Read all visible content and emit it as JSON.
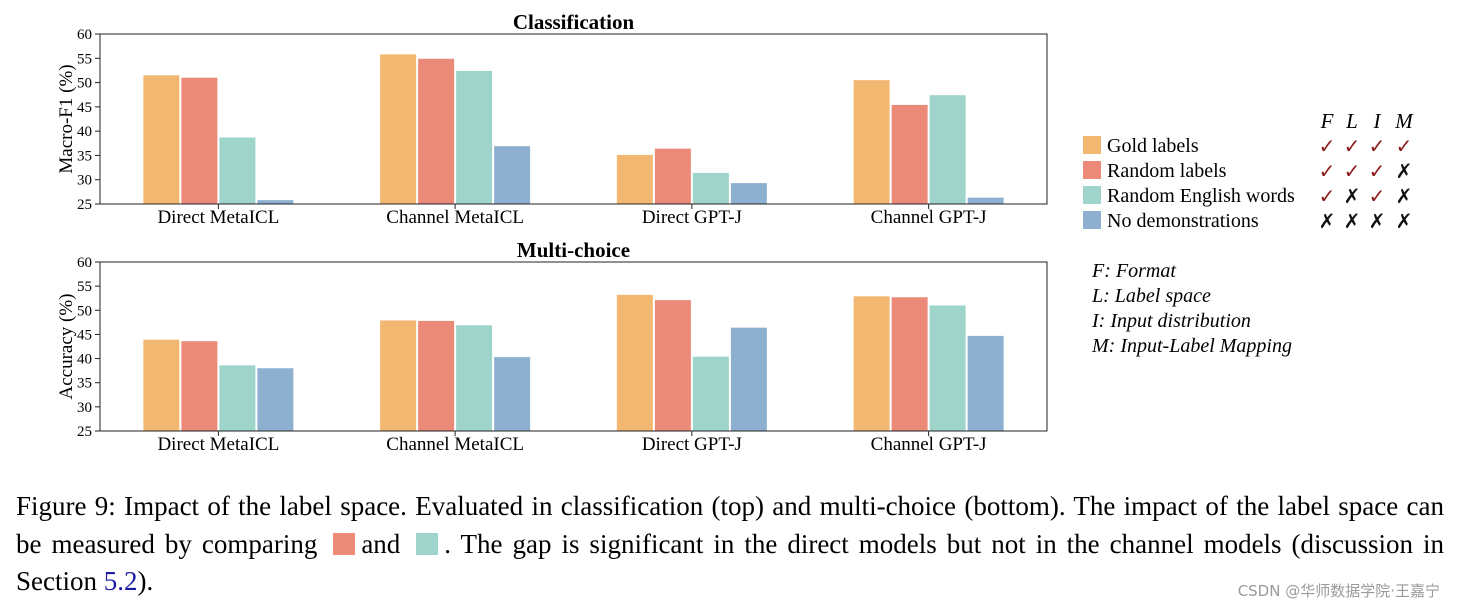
{
  "colors": {
    "gold": "#F2B872",
    "random_labels": "#EB8A79",
    "random_english": "#9ED4C9",
    "no_demos": "#8DB0D0",
    "check": "#8B1A1A",
    "cross": "#111111",
    "ref_link": "#1a1aa6"
  },
  "chart_data": [
    {
      "type": "bar",
      "title": "Classification",
      "ylabel": "Macro-F1 (%)",
      "xlabel": "",
      "ylim": [
        25,
        60
      ],
      "yticks": [
        25,
        30,
        35,
        40,
        45,
        50,
        55,
        60
      ],
      "categories": [
        "Direct MetaICL",
        "Channel MetaICL",
        "Direct GPT-J",
        "Channel GPT-J"
      ],
      "series": [
        {
          "name": "Gold labels",
          "values": [
            51.5,
            55.8,
            35.1,
            50.5
          ]
        },
        {
          "name": "Random labels",
          "values": [
            51.0,
            54.9,
            36.4,
            45.4
          ]
        },
        {
          "name": "Random English words",
          "values": [
            38.7,
            52.4,
            31.4,
            47.4
          ]
        },
        {
          "name": "No demonstrations",
          "values": [
            25.8,
            36.9,
            29.3,
            26.3
          ]
        }
      ],
      "grid": false
    },
    {
      "type": "bar",
      "title": "Multi-choice",
      "ylabel": "Accuracy (%)",
      "xlabel": "",
      "ylim": [
        25,
        60
      ],
      "yticks": [
        25,
        30,
        35,
        40,
        45,
        50,
        55,
        60
      ],
      "categories": [
        "Direct MetaICL",
        "Channel MetaICL",
        "Direct GPT-J",
        "Channel GPT-J"
      ],
      "series": [
        {
          "name": "Gold labels",
          "values": [
            43.9,
            47.9,
            53.2,
            52.9
          ]
        },
        {
          "name": "Random labels",
          "values": [
            43.6,
            47.8,
            52.1,
            52.7
          ]
        },
        {
          "name": "Random English words",
          "values": [
            38.6,
            46.9,
            40.4,
            51.0
          ]
        },
        {
          "name": "No demonstrations",
          "values": [
            38.0,
            40.3,
            46.4,
            44.7
          ]
        }
      ],
      "grid": false
    }
  ],
  "legend": {
    "columns": [
      "F",
      "L",
      "I",
      "M"
    ],
    "placement": "right",
    "rows": [
      {
        "label": "Gold labels",
        "color_key": "gold",
        "marks": [
          "✓",
          "✓",
          "✓",
          "✓"
        ]
      },
      {
        "label": "Random labels",
        "color_key": "random_labels",
        "marks": [
          "✓",
          "✓",
          "✓",
          "✗"
        ]
      },
      {
        "label": "Random English words",
        "color_key": "random_english",
        "marks": [
          "✓",
          "✗",
          "✓",
          "✗"
        ]
      },
      {
        "label": "No demonstrations",
        "color_key": "no_demos",
        "marks": [
          "✗",
          "✗",
          "✗",
          "✗"
        ]
      }
    ]
  },
  "key_notes": [
    "F: Format",
    "L: Label space",
    "I: Input distribution",
    "M: Input-Label Mapping"
  ],
  "caption": {
    "part1": "Figure 9: Impact of the label space. Evaluated in classification (top) and multi-choice (bottom). The impact of the label space can be measured by comparing",
    "part2": "and",
    "part3": ". The gap is significant in the direct models but not in the channel models (discussion in Section",
    "ref": "5.2",
    "part4": ")."
  },
  "watermark": "CSDN @华师数据学院·王嘉宁"
}
